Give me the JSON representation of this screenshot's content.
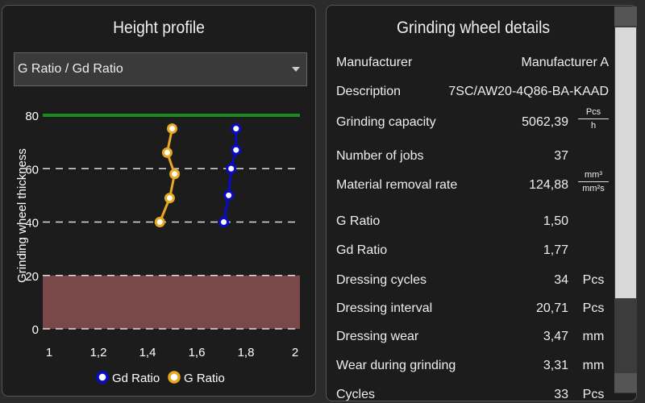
{
  "left_panel": {
    "title": "Height profile",
    "dropdown": {
      "selected": "G Ratio  / Gd Ratio"
    }
  },
  "chart_data": {
    "type": "line",
    "xlabel": "",
    "ylabel": "Grinding wheel thickness",
    "xlim": [
      1,
      2
    ],
    "ylim": [
      0,
      80
    ],
    "x_ticks": [
      "1",
      "1,2",
      "1,4",
      "1,6",
      "1,8",
      "2"
    ],
    "y_ticks": [
      "0",
      "20",
      "40",
      "60",
      "80"
    ],
    "grid": "dashed horizontal",
    "legend_placement": "bottom",
    "reference_line": {
      "y": 80,
      "color": "#1a8a1a"
    },
    "band": {
      "y_from": 0,
      "y_to": 20,
      "color": "#7a4848"
    },
    "series": [
      {
        "name": "Gd Ratio",
        "color": "#0a0acc",
        "points": [
          [
            1.71,
            40
          ],
          [
            1.73,
            50
          ],
          [
            1.74,
            60
          ],
          [
            1.76,
            67
          ],
          [
            1.76,
            75
          ]
        ]
      },
      {
        "name": "G Ratio",
        "color": "#e8a820",
        "points": [
          [
            1.45,
            40
          ],
          [
            1.49,
            49
          ],
          [
            1.51,
            58
          ],
          [
            1.48,
            66
          ],
          [
            1.5,
            75
          ]
        ]
      }
    ]
  },
  "right_panel": {
    "title": "Grinding wheel details",
    "rows": [
      {
        "label": "Manufacturer",
        "value": "Manufacturer  A"
      },
      {
        "label": "Description",
        "value": "7SC/AW20-4Q86-BA-KAAD"
      },
      {
        "label": "Grinding capacity",
        "value": "5062,39",
        "unit_num": "Pcs",
        "unit_den": "h"
      },
      {
        "label": "Number of jobs",
        "value": "37"
      },
      {
        "label": "Material removal rate",
        "value": "124,88",
        "unit_num": "mm³",
        "unit_den": "mm²s"
      },
      {
        "label": "G Ratio",
        "value": "1,50"
      },
      {
        "label": "Gd Ratio",
        "value": "1,77"
      },
      {
        "label": "Dressing cycles",
        "value": "34",
        "unit": "Pcs"
      },
      {
        "label": "Dressing interval",
        "value": "20,71",
        "unit": "Pcs"
      },
      {
        "label": "Dressing wear",
        "value": "3,47",
        "unit": "mm"
      },
      {
        "label": "Wear during grinding",
        "value": "3,31",
        "unit": "mm"
      },
      {
        "label": "Cycles",
        "value": "33",
        "unit": "Pcs"
      }
    ]
  }
}
